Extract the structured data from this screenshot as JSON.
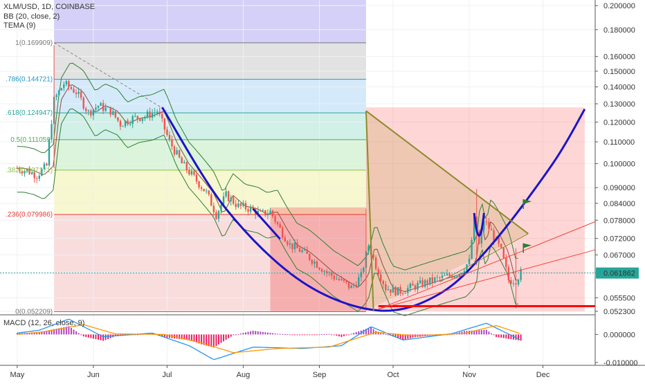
{
  "header": {
    "symbol_line": "XLM/USD, 1D, COINBASE",
    "bb_label": "BB (20, close, 2)",
    "tema_label": "TEMA (9)",
    "macd_label": "MACD (12, 26, close, 9)"
  },
  "colors": {
    "up": "#26a69a",
    "down": "#ef5350",
    "cup": "#1a14c8",
    "macd_line": "#2196f3",
    "signal_line": "#ff9800",
    "support": "#ff0000",
    "wedge": "#8b8b2b",
    "flag": "#2e7d32"
  },
  "chart_data": [
    {
      "type": "candlestick",
      "title": "XLM/USD, 1D, COINBASE",
      "ylim": [
        0.0515,
        0.205
      ],
      "log_scale": true,
      "x_ticks": [
        "May",
        "Jun",
        "Jul",
        "Aug",
        "Sep",
        "Oct",
        "Nov",
        "Dec"
      ],
      "y_ticks": [
        "0.200000",
        "0.180000",
        "0.160000",
        "0.150000",
        "0.140000",
        "0.130000",
        "0.120000",
        "0.110000",
        "0.100000",
        "0.090000",
        "0.084000",
        "0.078000",
        "0.072000",
        "0.067000",
        "0.062000",
        "0.055500",
        "0.052300"
      ],
      "y_tick_values": [
        0.2,
        0.18,
        0.16,
        0.15,
        0.14,
        0.13,
        0.12,
        0.11,
        0.1,
        0.09,
        0.084,
        0.078,
        0.072,
        0.067,
        0.062,
        0.0555,
        0.0523
      ],
      "current_price_label": "0.061862",
      "current_price": 0.061862,
      "fib_levels": [
        {
          "label": "1(0.169909)",
          "value": 0.169909
        },
        {
          "label": ".786(0.144721)",
          "value": 0.144721
        },
        {
          "label": ".618(0.124947)",
          "value": 0.124947
        },
        {
          "label": "0.5(0.111059)",
          "value": 0.111059
        },
        {
          "label": ".382(0.097171)",
          "value": 0.097171
        },
        {
          "label": ".236(0.079986)",
          "value": 0.079986
        },
        {
          "label": "0(0.052209)",
          "value": 0.052209
        }
      ],
      "support_level": 0.0535,
      "close_path": [
        [
          "2018-05-01",
          0.098
        ],
        [
          "2018-05-05",
          0.097
        ],
        [
          "2018-05-09",
          0.095
        ],
        [
          "2018-05-13",
          0.099
        ],
        [
          "2018-05-16",
          0.132
        ],
        [
          "2018-05-20",
          0.142
        ],
        [
          "2018-05-25",
          0.137
        ],
        [
          "2018-05-30",
          0.125
        ],
        [
          "2018-06-03",
          0.129
        ],
        [
          "2018-06-08",
          0.126
        ],
        [
          "2018-06-12",
          0.119
        ],
        [
          "2018-06-17",
          0.122
        ],
        [
          "2018-06-22",
          0.123
        ],
        [
          "2018-06-27",
          0.126
        ],
        [
          "2018-07-02",
          0.11
        ],
        [
          "2018-07-07",
          0.1
        ],
        [
          "2018-07-12",
          0.094
        ],
        [
          "2018-07-17",
          0.088
        ],
        [
          "2018-07-21",
          0.08
        ],
        [
          "2018-07-25",
          0.087
        ],
        [
          "2018-07-30",
          0.083
        ],
        [
          "2018-08-04",
          0.082
        ],
        [
          "2018-08-08",
          0.08
        ],
        [
          "2018-08-12",
          0.081
        ],
        [
          "2018-08-16",
          0.075
        ],
        [
          "2018-08-20",
          0.07
        ],
        [
          "2018-08-25",
          0.068
        ],
        [
          "2018-08-30",
          0.065
        ],
        [
          "2018-09-04",
          0.062
        ],
        [
          "2018-09-09",
          0.06
        ],
        [
          "2018-09-14",
          0.058
        ],
        [
          "2018-09-18",
          0.061
        ],
        [
          "2018-09-21",
          0.07
        ],
        [
          "2018-09-24",
          0.064
        ],
        [
          "2018-09-28",
          0.058
        ],
        [
          "2018-10-03",
          0.057
        ],
        [
          "2018-10-08",
          0.058
        ],
        [
          "2018-10-13",
          0.059
        ],
        [
          "2018-10-18",
          0.06
        ],
        [
          "2018-10-23",
          0.061
        ],
        [
          "2018-10-28",
          0.062
        ],
        [
          "2018-11-01",
          0.065
        ],
        [
          "2018-11-03",
          0.078
        ],
        [
          "2018-11-05",
          0.07
        ],
        [
          "2018-11-07",
          0.078
        ],
        [
          "2018-11-10",
          0.074
        ],
        [
          "2018-11-14",
          0.068
        ],
        [
          "2018-11-17",
          0.06
        ],
        [
          "2018-11-20",
          0.06
        ],
        [
          "2018-11-22",
          0.0619
        ]
      ],
      "cup_curve": [
        [
          "2018-06-29",
          0.128
        ],
        [
          "2018-07-25",
          0.082
        ],
        [
          "2018-08-25",
          0.0595
        ],
        [
          "2018-09-25",
          0.0525
        ],
        [
          "2018-10-20",
          0.0565
        ],
        [
          "2018-11-10",
          0.07
        ],
        [
          "2018-12-05",
          0.1
        ],
        [
          "2018-12-18",
          0.127
        ]
      ]
    },
    {
      "type": "line",
      "title": "MACD (12, 26, close, 9)",
      "ylim": [
        -0.011,
        0.007
      ],
      "y_ticks": [
        "0.000000",
        "-0.010000"
      ],
      "y_tick_values": [
        0,
        -0.01
      ],
      "series": [
        {
          "name": "MACD",
          "x": [
            "2018-05-01",
            "2018-05-10",
            "2018-05-22",
            "2018-06-05",
            "2018-06-25",
            "2018-07-10",
            "2018-07-20",
            "2018-08-05",
            "2018-08-25",
            "2018-09-10",
            "2018-09-22",
            "2018-10-05",
            "2018-10-25",
            "2018-11-08",
            "2018-11-22"
          ],
          "values": [
            0.0005,
            0.0015,
            0.0055,
            -0.0008,
            0.0005,
            -0.004,
            -0.009,
            -0.0045,
            -0.005,
            -0.004,
            0.0028,
            -0.002,
            0.0003,
            0.004,
            -0.002
          ]
        },
        {
          "name": "Signal",
          "x": [
            "2018-05-01",
            "2018-05-12",
            "2018-05-28",
            "2018-06-10",
            "2018-06-30",
            "2018-07-15",
            "2018-07-28",
            "2018-08-15",
            "2018-09-05",
            "2018-09-24",
            "2018-10-10",
            "2018-10-30",
            "2018-11-12",
            "2018-11-22"
          ],
          "values": [
            0.0,
            0.001,
            0.0035,
            0.0002,
            0.0,
            -0.003,
            -0.0065,
            -0.005,
            -0.0045,
            0.0008,
            -0.0005,
            0.0004,
            0.0032,
            0.0002
          ]
        }
      ]
    }
  ]
}
